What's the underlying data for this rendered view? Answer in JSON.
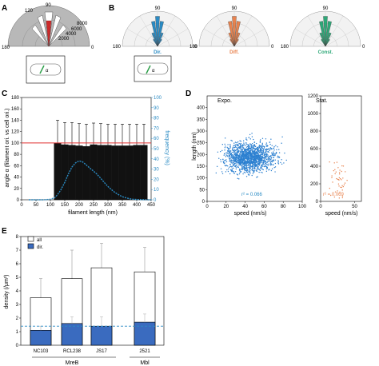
{
  "panels": {
    "A": {
      "letter": "A",
      "angle_labels": [
        "180",
        "120",
        "90",
        "0"
      ],
      "radial_labels": [
        "2000",
        "4000",
        "6000",
        "8000"
      ],
      "inset_label": "α"
    },
    "B": {
      "letter": "B",
      "angle_labels_top": [
        "90"
      ],
      "side_labels": [
        "180",
        "0"
      ],
      "cell_label": "α",
      "polar": [
        {
          "label": "Dir.",
          "color": "#2a8bc4"
        },
        {
          "label": "Diff.",
          "color": "#e8834f"
        },
        {
          "label": "Const.",
          "color": "#2ea878"
        }
      ]
    },
    "C": {
      "letter": "C",
      "ylabel_left": "angle α (filament ori. vs cell ori.)",
      "ylabel_right": "frequency (%)",
      "xlabel": "filament length (nm)",
      "xticks": [
        "0",
        "50",
        "100",
        "150",
        "200",
        "250",
        "300",
        "350",
        "400",
        "450"
      ],
      "yticks_left": [
        "0",
        "20",
        "40",
        "60",
        "80",
        "100",
        "120",
        "140",
        "160",
        "180"
      ],
      "yticks_right": [
        "0",
        "10",
        "20",
        "30",
        "40",
        "50",
        "60",
        "70",
        "80",
        "90",
        "100"
      ]
    },
    "D": {
      "letter": "D",
      "left_title": "Expo.",
      "right_title": "Stat.",
      "ylabel": "length (nm)",
      "xlabel": "speed (nm/s)",
      "left_r2": "r² = 0.066",
      "right_r2": "r² = 0.069",
      "left_xticks": [
        "0",
        "20",
        "40",
        "60",
        "80",
        "100"
      ],
      "left_yticks": [
        "0",
        "50",
        "100",
        "150",
        "200",
        "250",
        "300",
        "350",
        "400"
      ],
      "right_xticks": [
        "0",
        "50"
      ],
      "right_yticks": [
        "0",
        "200",
        "400",
        "600",
        "800",
        "1000",
        "1200"
      ]
    },
    "E": {
      "letter": "E",
      "ylabel": "density (/μm²)",
      "yticks": [
        "0",
        "1",
        "2",
        "3",
        "4",
        "5",
        "6",
        "7",
        "8"
      ],
      "legend": [
        "all",
        "dir."
      ],
      "group_labels": [
        "MreB",
        "Mbl"
      ]
    }
  },
  "chart_data": [
    {
      "type": "bar",
      "panel": "C",
      "categories": [
        "125",
        "150",
        "175",
        "200",
        "225",
        "250",
        "275",
        "300",
        "325",
        "350",
        "375",
        "400",
        "425"
      ],
      "values": [
        100,
        97,
        96,
        95,
        94,
        97,
        96,
        96,
        95,
        95,
        95,
        96,
        96
      ],
      "error_upper": [
        140,
        136,
        136,
        134,
        133,
        135,
        134,
        133,
        133,
        133,
        133,
        133,
        133
      ],
      "reference_line": 100,
      "frequency_curve": {
        "x": [
          25,
          50,
          75,
          100,
          115,
          125,
          137,
          150,
          162,
          175,
          187,
          200,
          212,
          225,
          237,
          250,
          262,
          275,
          287,
          300,
          312,
          325,
          337,
          350,
          362,
          375,
          387,
          400,
          412,
          425,
          437,
          450
        ],
        "y": [
          0,
          0,
          0,
          0.5,
          2,
          5,
          10,
          17,
          25,
          32,
          36,
          38,
          37,
          34,
          31,
          28,
          25,
          21,
          17,
          13,
          10,
          7,
          5,
          3,
          2,
          1,
          0.5,
          0.3,
          0.2,
          0.1,
          0,
          0
        ]
      },
      "xlim": [
        0,
        450
      ],
      "ylim": [
        0,
        180
      ],
      "ylim_right": [
        0,
        100
      ]
    },
    {
      "type": "scatter",
      "panel": "D-left",
      "title": "Expo.",
      "xlim": [
        0,
        100
      ],
      "ylim": [
        0,
        450
      ],
      "r2": 0.066,
      "cloud": {
        "center_x": 45,
        "center_y": 190,
        "spread_x": 18,
        "spread_y": 45,
        "n": 1400
      }
    },
    {
      "type": "scatter",
      "panel": "D-right",
      "title": "Stat.",
      "xlim": [
        0,
        60
      ],
      "ylim": [
        0,
        1200
      ],
      "r2": 0.069,
      "cloud": {
        "center_x": 25,
        "center_y": 230,
        "spread_x": 10,
        "spread_y": 160,
        "n": 45
      }
    },
    {
      "type": "bar",
      "panel": "E",
      "categories": [
        "NC103",
        "RCL238",
        "JS17",
        "2521"
      ],
      "series": [
        {
          "name": "all",
          "values": [
            3.5,
            4.9,
            5.7,
            5.4
          ],
          "error_upper": [
            4.9,
            7.0,
            7.5,
            7.2
          ]
        },
        {
          "name": "dir.",
          "values": [
            1.1,
            1.6,
            1.4,
            1.7
          ],
          "error_upper": [
            1.4,
            2.1,
            2.1,
            2.3
          ]
        }
      ],
      "reference_line": 1.4,
      "ylim": [
        0,
        8
      ]
    }
  ]
}
